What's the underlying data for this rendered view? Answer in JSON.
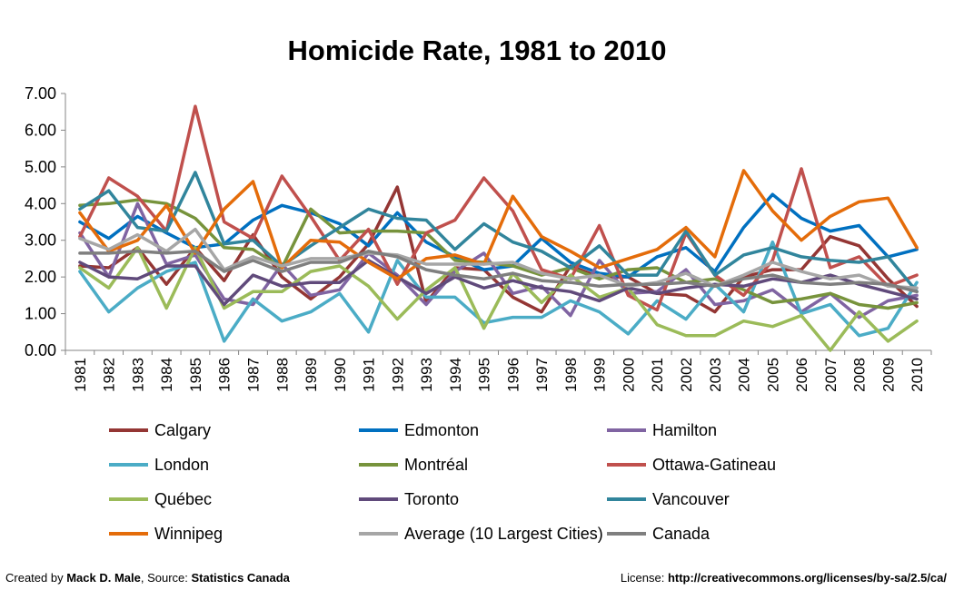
{
  "chart_data": {
    "type": "line",
    "title": "Homicide Rate, 1981 to 2010",
    "x": [
      1981,
      1982,
      1983,
      1984,
      1985,
      1986,
      1987,
      1988,
      1989,
      1990,
      1991,
      1992,
      1993,
      1994,
      1995,
      1996,
      1997,
      1998,
      1999,
      2000,
      2001,
      2002,
      2003,
      2004,
      2005,
      2006,
      2007,
      2008,
      2009,
      2010
    ],
    "ylim": [
      0,
      7
    ],
    "yticks": [
      "0.00",
      "1.00",
      "2.00",
      "3.00",
      "4.00",
      "5.00",
      "6.00",
      "7.00"
    ],
    "grid": false,
    "legend": "bottom",
    "series": [
      {
        "name": "Calgary",
        "color": "#943634",
        "values": [
          2.3,
          2.25,
          2.8,
          1.8,
          2.8,
          1.9,
          3.15,
          2.0,
          1.4,
          2.0,
          2.9,
          4.45,
          1.3,
          2.25,
          2.2,
          1.45,
          1.05,
          2.3,
          2.0,
          2.0,
          1.55,
          1.5,
          1.05,
          2.0,
          2.2,
          2.2,
          3.1,
          2.85,
          1.95,
          1.2
        ]
      },
      {
        "name": "Edmonton",
        "color": "#0070c0",
        "values": [
          3.5,
          3.05,
          3.65,
          3.2,
          2.8,
          2.9,
          3.55,
          3.95,
          3.75,
          3.45,
          2.85,
          3.75,
          2.95,
          2.55,
          2.2,
          2.3,
          3.05,
          2.4,
          2.1,
          2.0,
          2.55,
          2.8,
          2.15,
          3.35,
          4.25,
          3.6,
          3.25,
          3.4,
          2.55,
          2.75
        ]
      },
      {
        "name": "Hamilton",
        "color": "#8064a2",
        "values": [
          3.2,
          2.0,
          4.0,
          2.35,
          2.6,
          1.4,
          1.25,
          2.35,
          1.5,
          1.65,
          2.65,
          2.05,
          1.25,
          2.15,
          2.65,
          1.55,
          1.75,
          0.95,
          2.45,
          1.55,
          1.6,
          2.2,
          1.25,
          1.35,
          1.65,
          1.05,
          1.55,
          0.9,
          1.35,
          1.5
        ]
      },
      {
        "name": "London",
        "color": "#4bacc6",
        "values": [
          2.15,
          1.05,
          1.7,
          2.15,
          2.4,
          0.25,
          1.4,
          0.8,
          1.05,
          1.55,
          0.5,
          2.45,
          1.45,
          1.45,
          0.75,
          0.9,
          0.9,
          1.35,
          1.05,
          0.45,
          1.35,
          0.85,
          1.8,
          1.05,
          2.95,
          1.0,
          1.25,
          0.4,
          0.6,
          1.85
        ]
      },
      {
        "name": "Montréal",
        "color": "#77933c",
        "values": [
          3.95,
          4.0,
          4.1,
          4.0,
          3.6,
          2.8,
          2.75,
          2.25,
          3.85,
          3.2,
          3.25,
          3.25,
          3.2,
          2.45,
          2.4,
          2.3,
          2.05,
          2.25,
          1.95,
          2.2,
          2.25,
          1.85,
          1.95,
          1.65,
          1.3,
          1.4,
          1.55,
          1.25,
          1.15,
          1.3
        ]
      },
      {
        "name": "Ottawa-Gatineau",
        "color": "#c0504d",
        "values": [
          3.1,
          4.7,
          4.2,
          3.25,
          6.65,
          3.5,
          3.05,
          4.75,
          3.65,
          2.45,
          3.3,
          1.8,
          3.2,
          3.55,
          4.7,
          3.8,
          2.2,
          1.95,
          3.4,
          1.5,
          1.1,
          3.2,
          2.05,
          1.5,
          2.45,
          4.95,
          2.25,
          2.55,
          1.75,
          2.05
        ]
      },
      {
        "name": "Québec",
        "color": "#9bbb59",
        "values": [
          2.25,
          1.7,
          2.8,
          1.15,
          2.8,
          1.15,
          1.6,
          1.6,
          2.15,
          2.3,
          1.75,
          0.85,
          1.65,
          2.25,
          0.6,
          2.1,
          1.3,
          2.05,
          1.45,
          1.7,
          0.7,
          0.4,
          0.4,
          0.8,
          0.65,
          0.95,
          0.0,
          1.05,
          0.25,
          0.8
        ]
      },
      {
        "name": "Toronto",
        "color": "#604a7b",
        "values": [
          2.4,
          2.0,
          1.95,
          2.3,
          2.3,
          1.25,
          2.05,
          1.75,
          1.85,
          1.85,
          2.45,
          2.0,
          1.55,
          2.0,
          1.7,
          1.9,
          1.7,
          1.6,
          1.35,
          1.7,
          1.55,
          1.7,
          1.8,
          1.75,
          1.95,
          1.85,
          2.05,
          1.8,
          1.6,
          1.4
        ]
      },
      {
        "name": "Vancouver",
        "color": "#31859c",
        "values": [
          3.85,
          4.35,
          3.35,
          3.25,
          4.85,
          2.9,
          3.0,
          2.3,
          2.85,
          3.35,
          3.85,
          3.6,
          3.55,
          2.75,
          3.45,
          2.95,
          2.7,
          2.25,
          2.85,
          2.05,
          2.05,
          3.25,
          2.05,
          2.6,
          2.8,
          2.55,
          2.45,
          2.4,
          2.55,
          1.6
        ]
      },
      {
        "name": "Winnipeg",
        "color": "#e46c0a",
        "values": [
          3.75,
          2.7,
          3.0,
          3.95,
          2.65,
          3.85,
          4.6,
          2.25,
          3.0,
          2.95,
          2.4,
          1.95,
          2.5,
          2.6,
          2.35,
          4.2,
          3.1,
          2.7,
          2.25,
          2.5,
          2.75,
          3.35,
          2.55,
          4.9,
          3.8,
          3.0,
          3.65,
          4.05,
          4.15,
          2.8
        ]
      },
      {
        "name": "Average (10 Largest Cities)",
        "color": "#a6a6a6",
        "values": [
          3.05,
          2.75,
          3.15,
          2.7,
          3.3,
          2.2,
          2.55,
          2.3,
          2.5,
          2.5,
          2.65,
          2.6,
          2.35,
          2.35,
          2.35,
          2.4,
          2.1,
          1.95,
          2.05,
          1.75,
          1.85,
          2.1,
          1.75,
          2.05,
          2.4,
          2.15,
          1.95,
          2.05,
          1.75,
          1.7
        ]
      },
      {
        "name": "Canada",
        "color": "#7f7f7f",
        "values": [
          2.65,
          2.65,
          2.7,
          2.65,
          2.7,
          2.15,
          2.45,
          2.15,
          2.4,
          2.4,
          2.7,
          2.55,
          2.2,
          2.05,
          1.95,
          2.1,
          1.9,
          1.85,
          1.75,
          1.8,
          1.8,
          1.85,
          1.75,
          1.95,
          2.05,
          1.85,
          1.8,
          1.85,
          1.8,
          1.6
        ]
      }
    ]
  },
  "footer": {
    "created_prefix": "Created by ",
    "author": "Mack D. Male",
    "source_prefix": ", Source: ",
    "source": "Statistics Canada",
    "license_prefix": "License: ",
    "license_url": "http://creativecommons.org/licenses/by-sa/2.5/ca/"
  }
}
